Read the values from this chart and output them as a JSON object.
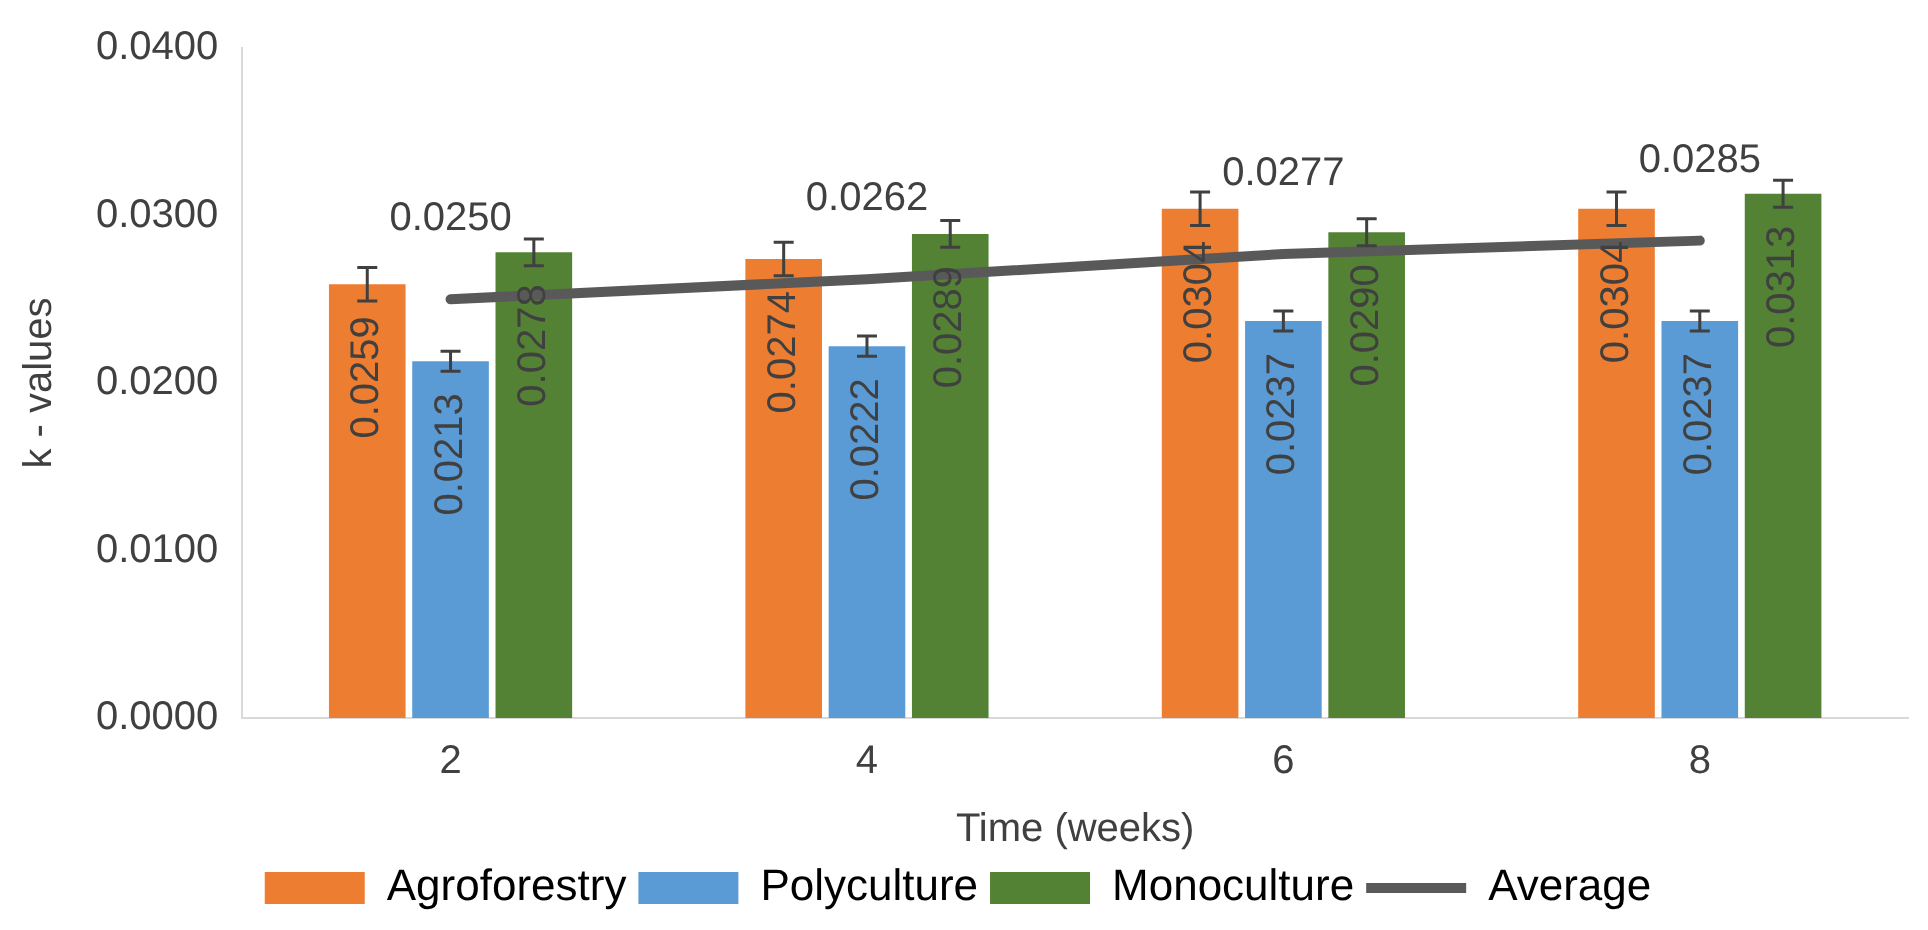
{
  "chart_data": {
    "type": "bar",
    "xlabel": "Time (weeks)",
    "ylabel": "k - values",
    "categories": [
      "2",
      "4",
      "6",
      "8"
    ],
    "series": [
      {
        "name": "Agroforestry",
        "color": "#ed7d31",
        "values": [
          0.0259,
          0.0274,
          0.0304,
          0.0304
        ],
        "errors": [
          0.001,
          0.001,
          0.001,
          0.001
        ],
        "value_labels": [
          "0.0259",
          "0.0274",
          "0.0304",
          "0.0304"
        ]
      },
      {
        "name": "Polyculture",
        "color": "#5b9bd5",
        "values": [
          0.0213,
          0.0222,
          0.0237,
          0.0237
        ],
        "errors": [
          0.0006,
          0.0006,
          0.0006,
          0.0006
        ],
        "value_labels": [
          "0.0213",
          "0.0222",
          "0.0237",
          "0.0237"
        ]
      },
      {
        "name": "Monoculture",
        "color": "#548235",
        "values": [
          0.0278,
          0.0289,
          0.029,
          0.0313
        ],
        "errors": [
          0.0008,
          0.0008,
          0.0008,
          0.0008
        ],
        "value_labels": [
          "0.0278",
          "0.0289",
          "0.0290",
          "0.0313"
        ]
      },
      {
        "name": "Average",
        "type": "line",
        "color": "#595959",
        "values": [
          0.025,
          0.0262,
          0.0277,
          0.0285
        ],
        "value_labels": [
          "0.0250",
          "0.0262",
          "0.0277",
          "0.0285"
        ]
      }
    ],
    "ylim": [
      0,
      0.04
    ],
    "yticks": [
      {
        "value": 0,
        "label": "0.0000"
      },
      {
        "value": 0.01,
        "label": "0.0100"
      },
      {
        "value": 0.02,
        "label": "0.0200"
      },
      {
        "value": 0.03,
        "label": "0.0300"
      },
      {
        "value": 0.04,
        "label": "0.0400"
      }
    ],
    "grid": false,
    "legend": "bottom",
    "marker": "none"
  }
}
